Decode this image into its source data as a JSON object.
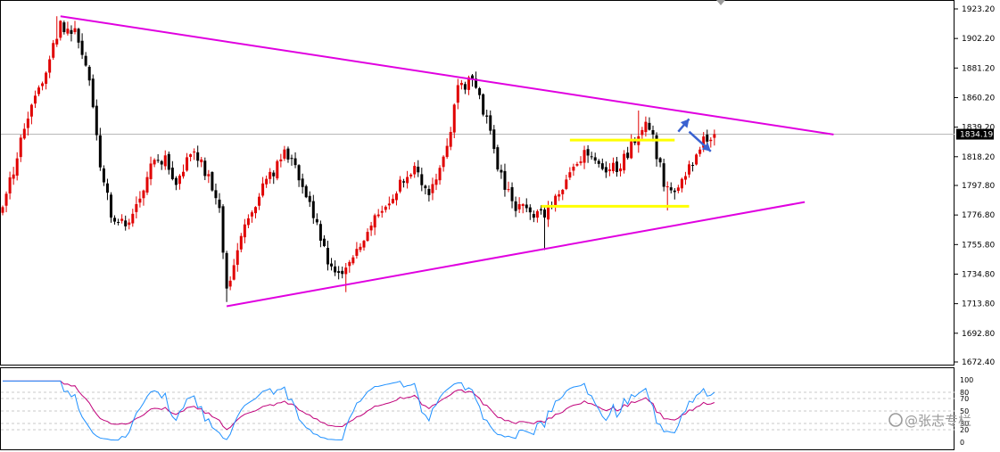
{
  "colors": {
    "bull": "#e00000",
    "bear": "#000000",
    "trend_line": "#e000e0",
    "range_line": "#ffff00",
    "arrow": "#3a62d0",
    "rsi_fast": "#1e90ff",
    "rsi_slow": "#c0007a",
    "grid": "#c8c8c8",
    "current_price_line": "#b8b8b8",
    "price_tag_bg": "#000000"
  },
  "watermark": {
    "icon": "zhihu-icon",
    "text": "@张志专栏"
  },
  "main_axis": {
    "ticks": [
      "1923.20",
      "1902.20",
      "1881.20",
      "1860.20",
      "1839.20",
      "1818.20",
      "1797.80",
      "1776.80",
      "1755.80",
      "1734.80",
      "1713.80",
      "1692.80",
      "1672.40"
    ],
    "current_price": "1834.19"
  },
  "rsi_axis": {
    "ticks": [
      "100",
      "80",
      "70",
      "50",
      "30",
      "20",
      "0"
    ]
  },
  "chart_data": [
    {
      "type": "candlestick",
      "title": "",
      "ylim": [
        1672.4,
        1923.2
      ],
      "y_ticks": [
        1923.2,
        1902.2,
        1881.2,
        1860.2,
        1839.2,
        1818.2,
        1797.8,
        1776.8,
        1755.8,
        1734.8,
        1713.8,
        1692.8,
        1672.4
      ],
      "current_price": 1834.19,
      "bar_count": 205,
      "anchors": [
        [
          0,
          1780
        ],
        [
          5,
          1830
        ],
        [
          12,
          1880
        ],
        [
          16,
          1912
        ],
        [
          20,
          1905
        ],
        [
          24,
          1870
        ],
        [
          27,
          1815
        ],
        [
          30,
          1778
        ],
        [
          34,
          1768
        ],
        [
          38,
          1790
        ],
        [
          42,
          1820
        ],
        [
          45,
          1815
        ],
        [
          48,
          1800
        ],
        [
          52,
          1822
        ],
        [
          57,
          1805
        ],
        [
          60,
          1780
        ],
        [
          62,
          1725
        ],
        [
          66,
          1760
        ],
        [
          70,
          1785
        ],
        [
          74,
          1805
        ],
        [
          78,
          1820
        ],
        [
          82,
          1805
        ],
        [
          86,
          1775
        ],
        [
          90,
          1745
        ],
        [
          94,
          1732
        ],
        [
          97,
          1745
        ],
        [
          101,
          1765
        ],
        [
          105,
          1780
        ],
        [
          109,
          1795
        ],
        [
          114,
          1810
        ],
        [
          118,
          1790
        ],
        [
          122,
          1815
        ],
        [
          126,
          1865
        ],
        [
          130,
          1872
        ],
        [
          134,
          1845
        ],
        [
          137,
          1810
        ],
        [
          141,
          1785
        ],
        [
          146,
          1780
        ],
        [
          150,
          1775
        ],
        [
          154,
          1790
        ],
        [
          158,
          1810
        ],
        [
          162,
          1822
        ],
        [
          166,
          1810
        ],
        [
          170,
          1810
        ],
        [
          174,
          1825
        ],
        [
          178,
          1840
        ],
        [
          180,
          1830
        ],
        [
          183,
          1800
        ],
        [
          186,
          1790
        ],
        [
          189,
          1805
        ],
        [
          192,
          1820
        ],
        [
          195,
          1833
        ],
        [
          197,
          1834.19
        ]
      ],
      "extremes": [
        {
          "bar": 15,
          "high": 1918
        },
        {
          "bar": 62,
          "low": 1715
        },
        {
          "bar": 95,
          "low": 1722
        },
        {
          "bar": 130,
          "high": 1877
        },
        {
          "bar": 150,
          "low": 1752
        },
        {
          "bar": 176,
          "high": 1851
        },
        {
          "bar": 184,
          "low": 1780
        }
      ],
      "trend_lines": [
        {
          "name": "upper-trend-line",
          "from": [
            16,
            1918
          ],
          "to": [
            230,
            1834
          ]
        },
        {
          "name": "lower-trend-line",
          "from": [
            62,
            1712
          ],
          "to": [
            222,
            1786
          ]
        },
        {
          "name": "upper-range-line",
          "from": [
            157,
            1830
          ],
          "to": [
            186,
            1830
          ]
        },
        {
          "name": "lower-range-line",
          "from": [
            149,
            1783
          ],
          "to": [
            190,
            1783
          ]
        }
      ],
      "arrows": [
        {
          "name": "arrow-up",
          "from": [
            187,
            1836
          ],
          "to": [
            190,
            1845
          ]
        },
        {
          "name": "arrow-down",
          "from": [
            190,
            1836
          ],
          "to": [
            196,
            1822
          ]
        }
      ]
    },
    {
      "type": "line",
      "title": "",
      "ylim": [
        0,
        100
      ],
      "y_ticks": [
        100,
        80,
        70,
        50,
        30,
        20,
        0
      ],
      "levels": [
        20,
        30,
        50,
        70,
        80
      ],
      "series": [
        {
          "values_from": "fast_rsi"
        },
        {
          "values_from": "slow_rsi"
        }
      ]
    }
  ]
}
